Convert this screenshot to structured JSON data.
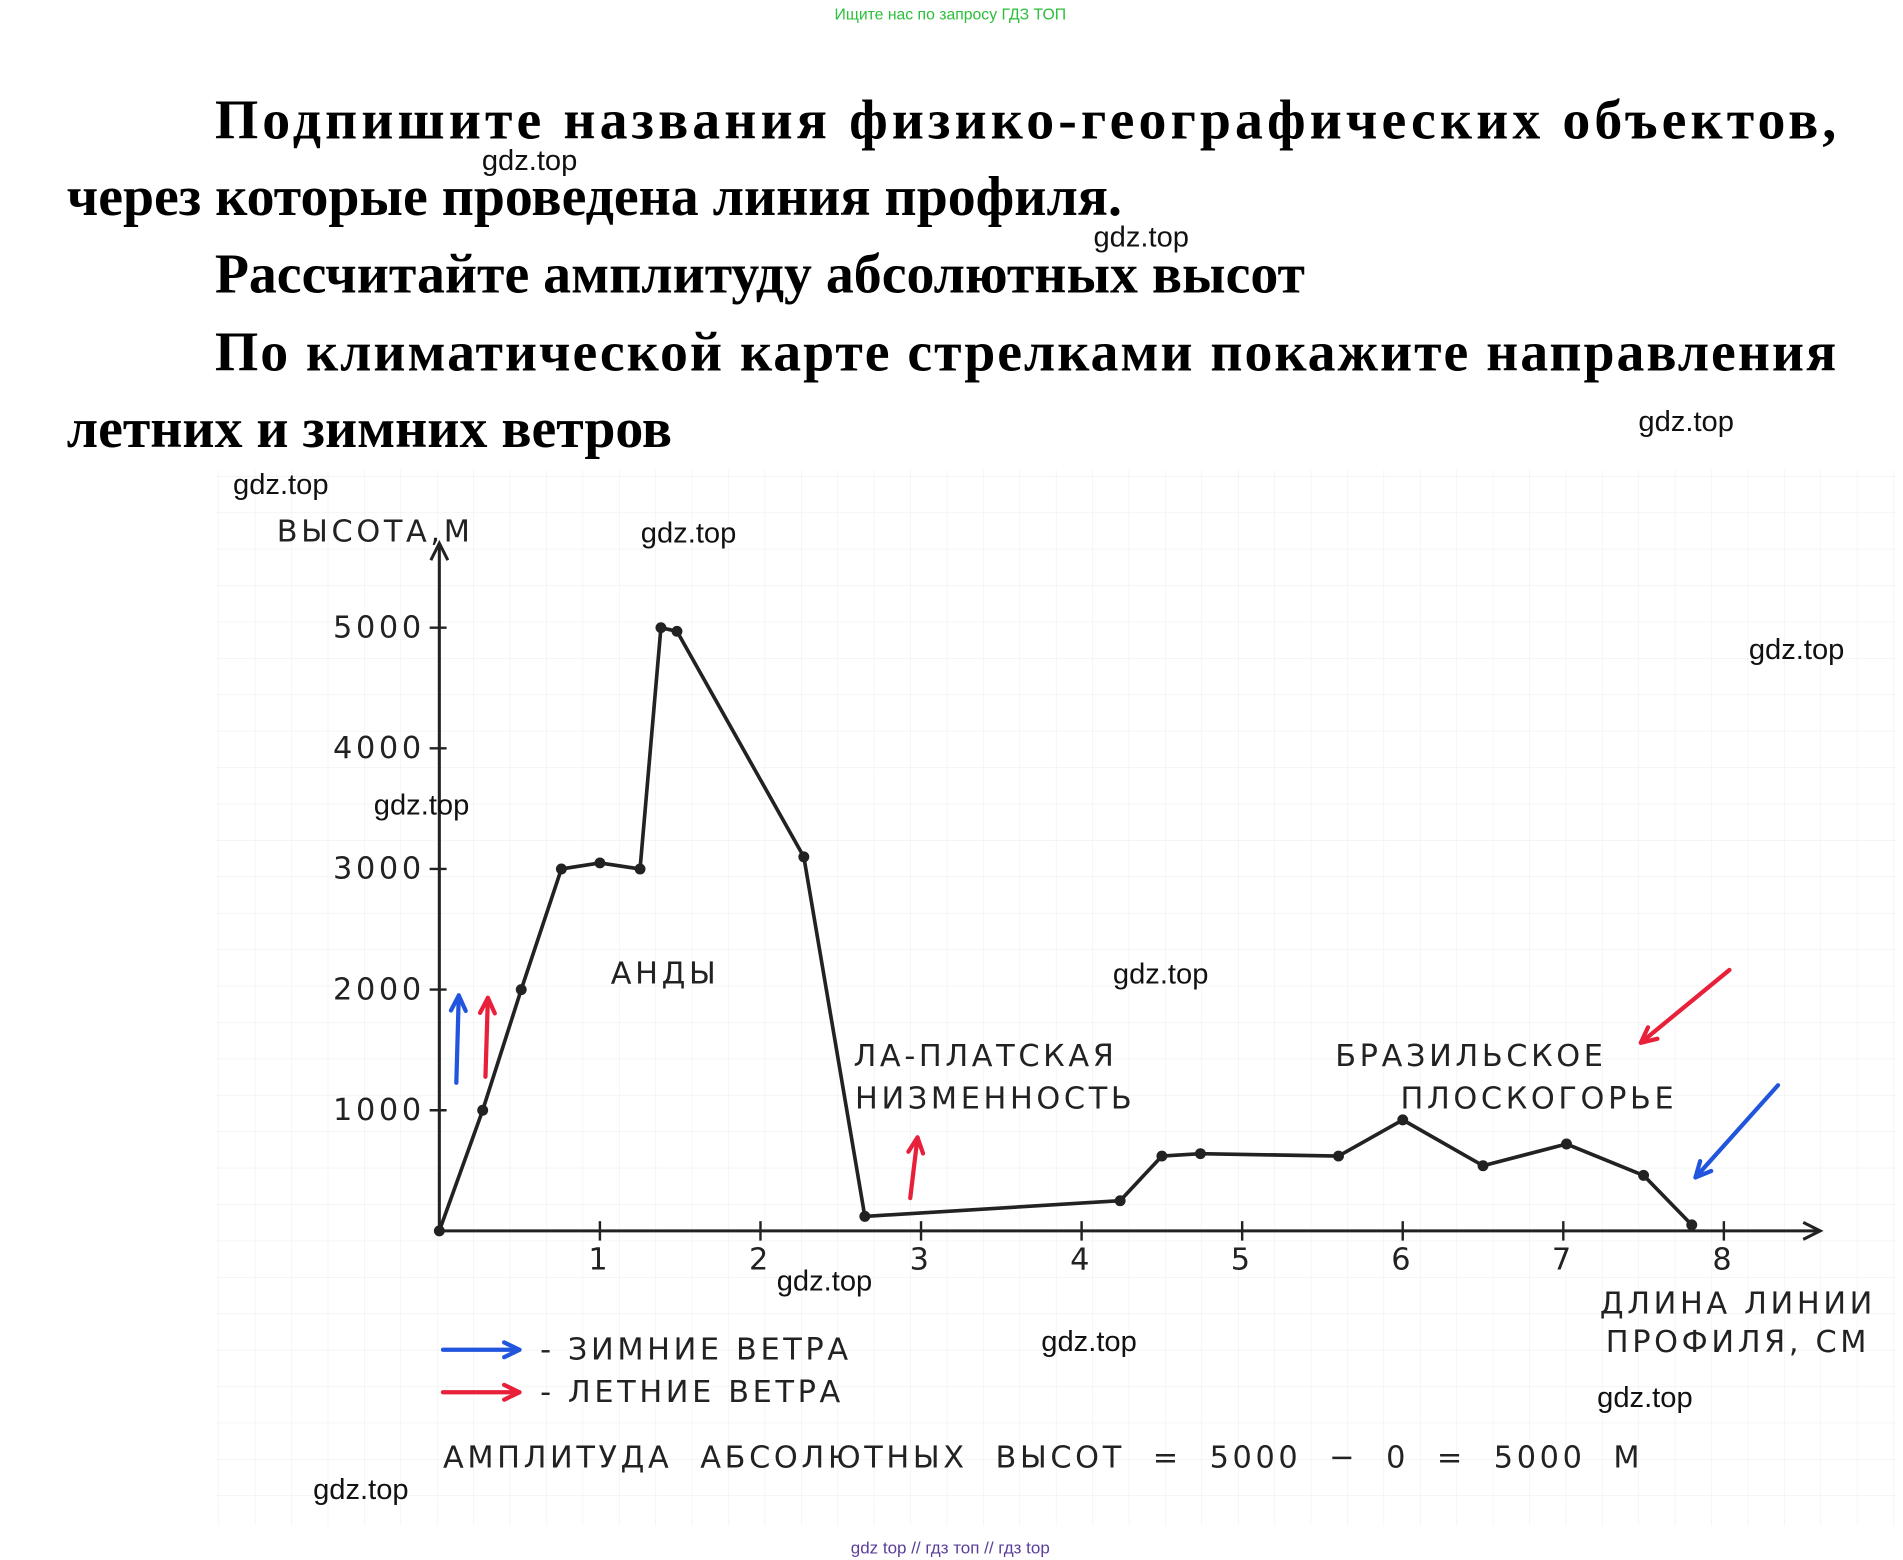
{
  "header": {
    "banner": "Ищите нас по запросу ГДЗ ТОП"
  },
  "task": {
    "lines": [
      "Подпишите названия физико-географических объектов,",
      "через которые проведена линия профиля.",
      "Рассчитайте амплитуду абсолютных высот",
      "По климатической карте стрелками покажите направления",
      "летних и зимних ветров"
    ]
  },
  "watermarks": [
    "gdz.top",
    "gdz.top",
    "gdz.top",
    "gdz.top",
    "gdz.top",
    "gdz.top",
    "gdz.top",
    "gdz.top",
    "gdz.top",
    "gdz.top",
    "gdz.top",
    "gdz.top"
  ],
  "footer": {
    "text": "gdz top  //  гдз топ  //  гдз top"
  },
  "chart_data": {
    "type": "line",
    "ylabel": "ВЫСОТА,М",
    "xlabel": [
      "ДЛИНА ЛИНИИ",
      "ПРОФИЛЯ, СМ"
    ],
    "x": [
      0,
      0.27,
      0.51,
      0.76,
      1.0,
      1.25,
      1.38,
      1.48,
      2.27,
      2.65,
      4.24,
      4.5,
      4.74,
      5.6,
      6.0,
      6.5,
      7.02,
      7.5,
      7.8
    ],
    "series": [
      {
        "name": "ВЫСОТА",
        "color": "#222222",
        "values": [
          0,
          1000,
          2000,
          3000,
          3050,
          3000,
          5000,
          4970,
          3100,
          120,
          250,
          620,
          640,
          620,
          920,
          540,
          720,
          460,
          50
        ]
      }
    ],
    "xlim": [
      0,
      8.6
    ],
    "xticks": [
      1,
      2,
      3,
      4,
      5,
      6,
      7,
      8
    ],
    "ylim": [
      0,
      5700
    ],
    "yticks": [
      1000,
      2000,
      3000,
      4000,
      5000
    ],
    "annotations": [
      {
        "lines": [
          "АНДЫ"
        ]
      },
      {
        "lines": [
          "ЛА-ПЛАТСКАЯ",
          "НИЗМЕННОСТЬ"
        ]
      },
      {
        "lines": [
          "БРАЗИЛЬСКОЕ",
          "ПЛОСКОГОРЬЕ"
        ]
      }
    ],
    "legend": [
      {
        "name": "- ЗИМНИЕ ВЕТРА",
        "color": "#2255dd"
      },
      {
        "name": "- ЛЕТНИЕ ВЕТРА",
        "color": "#e8203a"
      }
    ],
    "formula": "АМПЛИТУДА АБСОЛЮТНЫХ ВЫСОТ = 5000 − 0 = 5000 М"
  }
}
